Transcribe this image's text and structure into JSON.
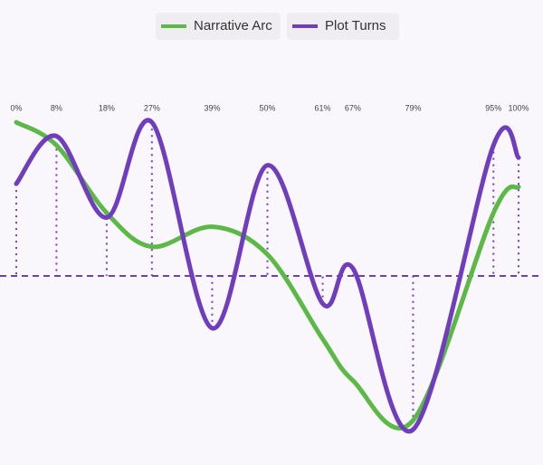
{
  "chart_data": {
    "type": "line",
    "x": [
      0,
      8,
      18,
      27,
      39,
      50,
      61,
      67,
      79,
      95,
      100
    ],
    "xlim": [
      0,
      100
    ],
    "xticks": [
      {
        "value": 0,
        "label": "0%"
      },
      {
        "value": 8,
        "label": "8%"
      },
      {
        "value": 18,
        "label": "18%"
      },
      {
        "value": 27,
        "label": "27%"
      },
      {
        "value": 39,
        "label": "39%"
      },
      {
        "value": 50,
        "label": "50%"
      },
      {
        "value": 61,
        "label": "61%"
      },
      {
        "value": 67,
        "label": "67%"
      },
      {
        "value": 79,
        "label": "79%"
      },
      {
        "value": 95,
        "label": "95%"
      },
      {
        "value": 100,
        "label": "100%"
      }
    ],
    "ylim": [
      -10.6,
      10.6
    ],
    "baseline": 0,
    "legend": "top",
    "series": [
      {
        "name": "Narrative Arc",
        "color": "#5cb946",
        "values": [
          10,
          8.5,
          4.1,
          1.9,
          3.2,
          1.4,
          -4.1,
          -6.8,
          -9.4,
          4.1,
          5.8
        ]
      },
      {
        "name": "Plot Turns",
        "color": "#6f3dbd",
        "values": [
          6,
          9.1,
          3.8,
          10,
          -3.4,
          7.2,
          -1.8,
          0.5,
          -10,
          8.5,
          7.7
        ]
      }
    ]
  }
}
